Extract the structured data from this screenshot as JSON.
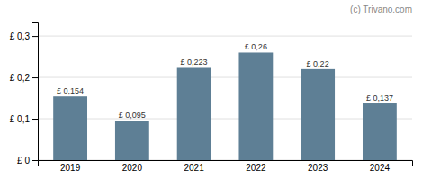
{
  "chart_data": {
    "type": "bar",
    "categories": [
      "2019",
      "2020",
      "2021",
      "2022",
      "2023",
      "2024"
    ],
    "values": [
      0.154,
      0.095,
      0.223,
      0.26,
      0.22,
      0.137
    ],
    "value_labels": [
      "£ 0,154",
      "£ 0,095",
      "£ 0,223",
      "£ 0,26",
      "£ 0,22",
      "£ 0,137"
    ],
    "data_labels": true,
    "color": "#5e7f95",
    "ylim": [
      0,
      0.335
    ],
    "yticks": [
      {
        "value": 0.0,
        "label": "£ 0"
      },
      {
        "value": 0.1,
        "label": "£ 0,1"
      },
      {
        "value": 0.2,
        "label": "£ 0,2"
      },
      {
        "value": 0.3,
        "label": "£ 0,3"
      }
    ],
    "grid": true,
    "annotations": [
      "(c) Trivano.com"
    ]
  }
}
